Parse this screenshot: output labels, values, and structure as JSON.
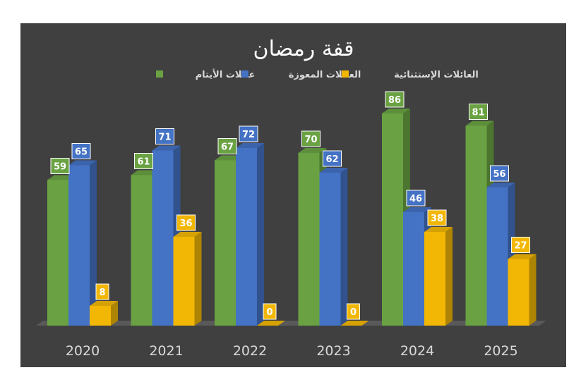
{
  "chart_data": {
    "type": "bar",
    "title": "قفة رمضان",
    "categories": [
      "2020",
      "2021",
      "2022",
      "2023",
      "2024",
      "2025"
    ],
    "series": [
      {
        "name": "عائلات الأيتام",
        "color": "#6aa243",
        "values": [
          59,
          61,
          67,
          70,
          86,
          81
        ]
      },
      {
        "name": "العائلات المعوزة",
        "color": "#4472c4",
        "values": [
          65,
          71,
          72,
          62,
          46,
          56
        ]
      },
      {
        "name": "العائلات الإستثنائية",
        "color": "#f2b705",
        "values": [
          8,
          36,
          0,
          0,
          38,
          27
        ]
      }
    ],
    "ylim": [
      0,
      100
    ],
    "grid": false,
    "legend": "top",
    "data_labels": true,
    "style": "3d-clustered-column"
  }
}
